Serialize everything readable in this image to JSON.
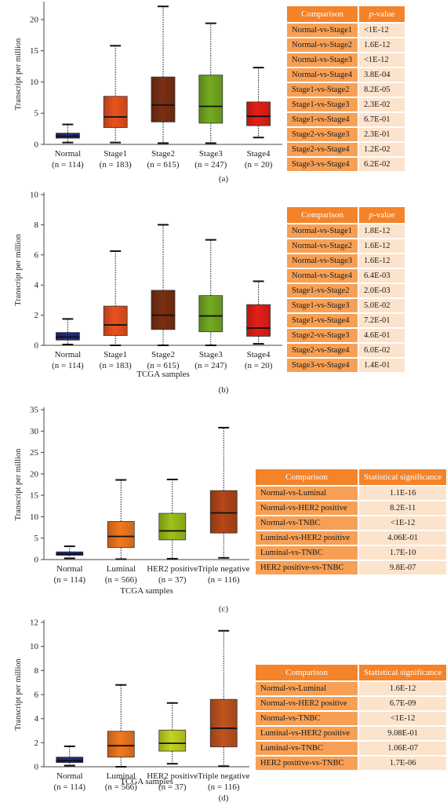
{
  "chart_data": [
    {
      "type": "box",
      "panel": "(a)",
      "ylabel": "Transcript per million",
      "xlabel": "",
      "ylim": [
        0,
        22.5
      ],
      "yticks": [
        0,
        5,
        10,
        15,
        20
      ],
      "series": [
        {
          "label": "Normal",
          "n": "(n = 114)",
          "color": "#1F2D86",
          "min": 0.3,
          "q1": 1.0,
          "median": 1.3,
          "q3": 1.8,
          "max": 3.2
        },
        {
          "label": "Stage1",
          "n": "(n = 183)",
          "color": "#E8521D",
          "min": 0.3,
          "q1": 2.7,
          "median": 4.4,
          "q3": 7.7,
          "max": 15.8
        },
        {
          "label": "Stage2",
          "n": "(n = 615)",
          "color": "#7B2F12",
          "min": 0.2,
          "q1": 3.6,
          "median": 6.3,
          "q3": 10.8,
          "max": 22.1
        },
        {
          "label": "Stage3",
          "n": "(n = 247)",
          "color": "#74AB1F",
          "min": 0.2,
          "q1": 3.4,
          "median": 6.1,
          "q3": 11.1,
          "max": 19.4
        },
        {
          "label": "Stage4",
          "n": "(n = 20)",
          "color": "#E42018",
          "min": 1.1,
          "q1": 3.0,
          "median": 4.5,
          "q3": 6.8,
          "max": 12.3
        }
      ],
      "table": {
        "headers": [
          "Comparison",
          "p-value"
        ],
        "rows": [
          [
            "Normal-vs-Stage1",
            "<1E-12"
          ],
          [
            "Normal-vs-Stage2",
            "1.6E-12"
          ],
          [
            "Normal-vs-Stage3",
            "<1E-12"
          ],
          [
            "Normal-vs-Stage4",
            "3.8E-04"
          ],
          [
            "Stage1-vs-Stage2",
            "8.2E-05"
          ],
          [
            "Stage1-vs-Stage3",
            "2.3E-02"
          ],
          [
            "Stage1-vs-Stage4",
            "6.7E-01"
          ],
          [
            "Stage2-vs-Stage3",
            "2.3E-01"
          ],
          [
            "Stage2-vs-Stage4",
            "1.2E-02"
          ],
          [
            "Stage3-vs-Stage4",
            "6.2E-02"
          ]
        ]
      }
    },
    {
      "type": "box",
      "panel": "(b)",
      "ylabel": "Transcript per million",
      "xlabel": "TCGA samples",
      "ylim": [
        0,
        10
      ],
      "yticks": [
        0,
        2,
        4,
        6,
        8,
        10
      ],
      "series": [
        {
          "label": "Normal",
          "n": "(n = 114)",
          "color": "#1F2D86",
          "min": 0.05,
          "q1": 0.35,
          "median": 0.55,
          "q3": 0.85,
          "max": 1.75
        },
        {
          "label": "Stage1",
          "n": "(n = 183)",
          "color": "#E8521D",
          "min": 0.0,
          "q1": 0.65,
          "median": 1.35,
          "q3": 2.6,
          "max": 6.25
        },
        {
          "label": "Stage2",
          "n": "(n = 615)",
          "color": "#7B2F12",
          "min": 0.0,
          "q1": 1.05,
          "median": 2.0,
          "q3": 3.65,
          "max": 8.0
        },
        {
          "label": "Stage3",
          "n": "(n = 247)",
          "color": "#74AB1F",
          "min": 0.0,
          "q1": 0.9,
          "median": 1.95,
          "q3": 3.3,
          "max": 7.0
        },
        {
          "label": "Stage4",
          "n": "(n = 20)",
          "color": "#E42018",
          "min": 0.1,
          "q1": 0.6,
          "median": 1.15,
          "q3": 2.7,
          "max": 4.25
        }
      ],
      "table": {
        "headers": [
          "Comparison",
          "p-value"
        ],
        "rows": [
          [
            "Normal-vs-Stage1",
            "1.8E-12"
          ],
          [
            "Normal-vs-Stage2",
            "1.6E-12"
          ],
          [
            "Normal-vs-Stage3",
            "1.6E-12"
          ],
          [
            "Normal-vs-Stage4",
            "6.4E-03"
          ],
          [
            "Stage1-vs-Stage2",
            "2.0E-03"
          ],
          [
            "Stage1-vs-Stage3",
            "5.0E-02"
          ],
          [
            "Stage1-vs-Stage4",
            "7.2E-01"
          ],
          [
            "Stage2-vs-Stage3",
            "4.6E-01"
          ],
          [
            "Stage2-vs-Stage4",
            "6.0E-02"
          ],
          [
            "Stage3-vs-Stage4",
            "1.4E-01"
          ]
        ]
      }
    },
    {
      "type": "box",
      "panel": "(c)",
      "ylabel": "Transcript per million",
      "xlabel": "TCGA samples",
      "ylim": [
        0,
        35
      ],
      "yticks": [
        0,
        5,
        10,
        15,
        20,
        25,
        30,
        35
      ],
      "series": [
        {
          "label": "Normal",
          "n": "(n = 114)",
          "color": "#1F2D86",
          "min": 0.3,
          "q1": 1.0,
          "median": 1.3,
          "q3": 1.8,
          "max": 3.1
        },
        {
          "label": "Luminal",
          "n": "(n = 566)",
          "color": "#F4781F",
          "min": 0.1,
          "q1": 2.8,
          "median": 5.4,
          "q3": 8.9,
          "max": 18.6
        },
        {
          "label": "HER2 positive",
          "n": "(n = 37)",
          "color": "#9EC11A",
          "min": 0.2,
          "q1": 4.6,
          "median": 6.7,
          "q3": 10.8,
          "max": 18.7
        },
        {
          "label": "Triple negative",
          "n": "(n = 116)",
          "color": "#B5461A",
          "min": 0.4,
          "q1": 6.2,
          "median": 10.9,
          "q3": 16.1,
          "max": 30.8
        }
      ],
      "table": {
        "headers": [
          "Comparison",
          "Statistical significance"
        ],
        "rows": [
          [
            "Normal-vs-Luminal",
            "1.1E-16"
          ],
          [
            "Normal-vs-HER2 positive",
            "8.2E-11"
          ],
          [
            "Normal-vs-TNBC",
            "<1E-12"
          ],
          [
            "Luminal-vs-HER2 positive",
            "4.06E-01"
          ],
          [
            "Luminal-vs-TNBC",
            "1.7E-10"
          ],
          [
            "HER2 positive-vs-TNBC",
            "9.8E-07"
          ]
        ]
      }
    },
    {
      "type": "box",
      "panel": "(d)",
      "ylabel": "Transcript per million",
      "xlabel": "TCGA samples",
      "ylim": [
        0,
        12
      ],
      "yticks": [
        0,
        2,
        4,
        6,
        8,
        10,
        12
      ],
      "series": [
        {
          "label": "Normal",
          "n": "(n = 114)",
          "color": "#1F2D86",
          "min": 0.1,
          "q1": 0.35,
          "median": 0.5,
          "q3": 0.8,
          "max": 1.7
        },
        {
          "label": "Luminal",
          "n": "(n = 566)",
          "color": "#F4781F",
          "min": 0.0,
          "q1": 0.8,
          "median": 1.75,
          "q3": 2.95,
          "max": 6.8
        },
        {
          "label": "HER2 positive",
          "n": "(n = 37)",
          "color": "#C3D420",
          "min": 0.25,
          "q1": 1.3,
          "median": 1.95,
          "q3": 3.05,
          "max": 5.3
        },
        {
          "label": "Triple negative",
          "n": "(n = 116)",
          "color": "#C0541F",
          "min": 0.05,
          "q1": 1.65,
          "median": 3.2,
          "q3": 5.6,
          "max": 11.3
        }
      ],
      "table": {
        "headers": [
          "Comparison",
          "Statistical significance"
        ],
        "rows": [
          [
            "Normal-vs-Luminal",
            "1.6E-12"
          ],
          [
            "Normal-vs-HER2 positive",
            "6.7E-09"
          ],
          [
            "Normal-vs-TNBC",
            "<1E-12"
          ],
          [
            "Luminal-vs-HER2 positive",
            "9.08E-01"
          ],
          [
            "Luminal-vs-TNBC",
            "1.06E-07"
          ],
          [
            "HER2 positive-vs-TNBC",
            "1.7E-06"
          ]
        ]
      }
    }
  ]
}
